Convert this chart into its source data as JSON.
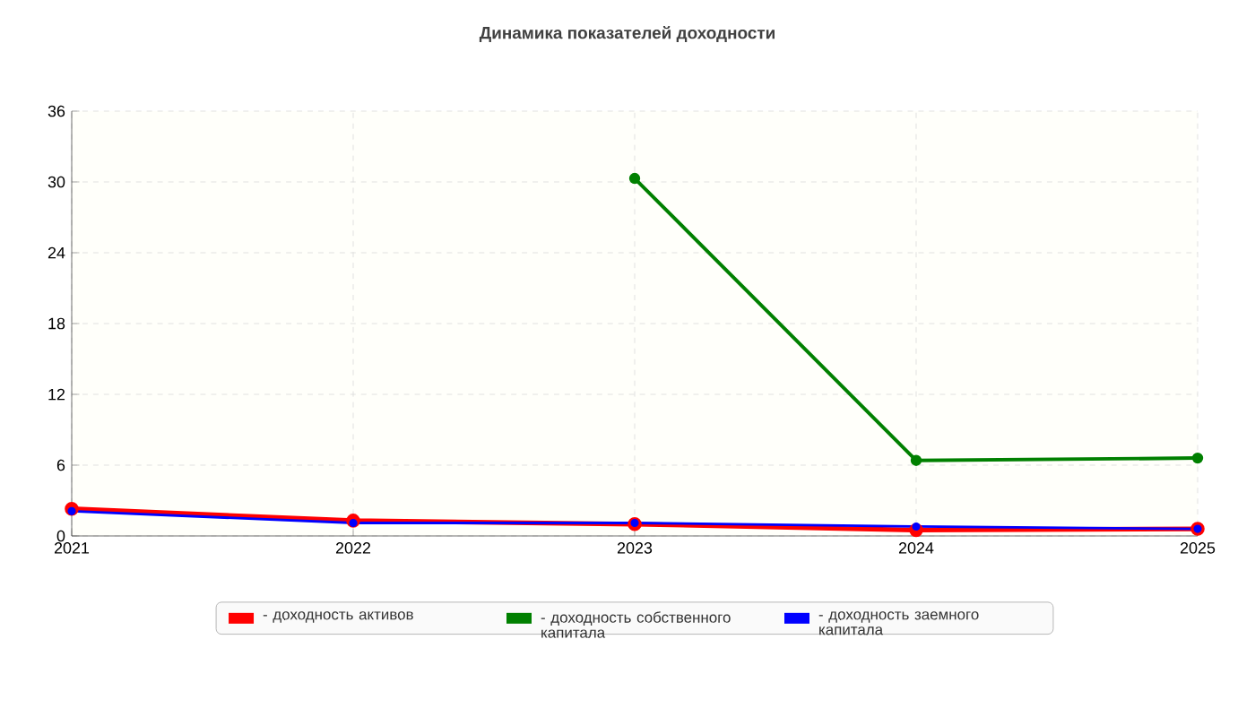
{
  "chart_data": {
    "type": "line",
    "title": "Динамика показателей доходности",
    "x": [
      2021,
      2022,
      2023,
      2024,
      2025
    ],
    "xlim": [
      2021,
      2025
    ],
    "xticks": [
      2021,
      2022,
      2023,
      2024,
      2025
    ],
    "ylim": [
      0,
      36
    ],
    "yticks": [
      0,
      6,
      12,
      18,
      24,
      30,
      36
    ],
    "grid": true,
    "legend": "bottom",
    "marker": "circle",
    "line_style": "solid",
    "series": [
      {
        "name": "- доходность активов",
        "color": "#ff0000",
        "values": [
          2.3,
          1.3,
          1.0,
          0.5,
          0.6
        ]
      },
      {
        "name": "- доходность собственного капитала",
        "color": "#008000",
        "values": [
          null,
          null,
          30.3,
          6.4,
          6.6
        ]
      },
      {
        "name": "- доходность заемного капитала",
        "color": "#0000ff",
        "values": [
          2.1,
          1.1,
          1.1,
          0.8,
          0.6
        ]
      }
    ]
  }
}
